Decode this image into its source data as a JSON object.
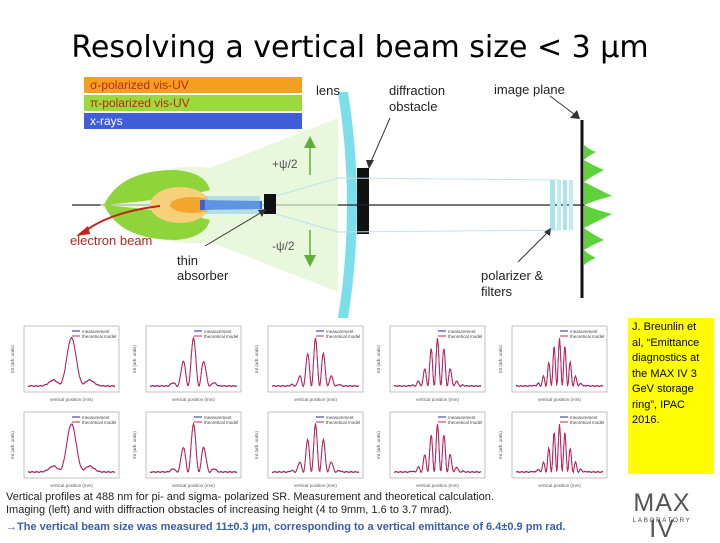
{
  "title": "Resolving a vertical beam size < 3 µm",
  "legend": [
    {
      "label": "σ-polarized vis-UV",
      "color": "#f3a020"
    },
    {
      "label": "π-polarized vis-UV",
      "color": "#9ada3a"
    },
    {
      "label": "x-rays",
      "color": "#3f5fd8"
    }
  ],
  "labels": {
    "lens": "lens",
    "diffraction_obstacle_1": "diffraction",
    "diffraction_obstacle_2": "obstacle",
    "image_plane": "image plane",
    "plus_psi": "+ψ/2",
    "minus_psi": "-ψ/2",
    "electron_beam": "electron beam",
    "thin_absorber_1": "thin",
    "thin_absorber_2": "absorber",
    "polarizer_1": "polarizer &",
    "polarizer_2": "filters"
  },
  "plots": {
    "legend_measurement": "measurement",
    "legend_theory": "theoretical model",
    "xlabel": "vertical position (mm)",
    "ylabel": "Int (arb. units)",
    "count": 10
  },
  "citation": "J. Breunlin et al, “Emittance diagnostics at the MAX IV 3 GeV storage ring”, IPAC 2016.",
  "caption_line1": "Vertical profiles at 488 nm for pi- and sigma- polarized SR. Measurement and theoretical calculation.",
  "caption_line2": "Imaging (left) and with diffraction obstacles of increasing height (4 to 9mm, 1.6 to 3.7 mrad).",
  "conclusion": "→The vertical beam size was measured 11±0.3 µm, corresponding to a vertical emittance of 6.4±0.9 pm rad.",
  "logo": {
    "text": "MAX IV",
    "sub": "LABORATORY"
  },
  "colors": {
    "sigma": "#f3a020",
    "pi": "#9ada3a",
    "xray": "#3f5fd8",
    "lens": "#6cdce8",
    "arrow": "#5fae3a",
    "electron": "#c0241c",
    "citation_bg": "#fffd00",
    "measurement": "#1c2a9e",
    "theory": "#d02050"
  }
}
